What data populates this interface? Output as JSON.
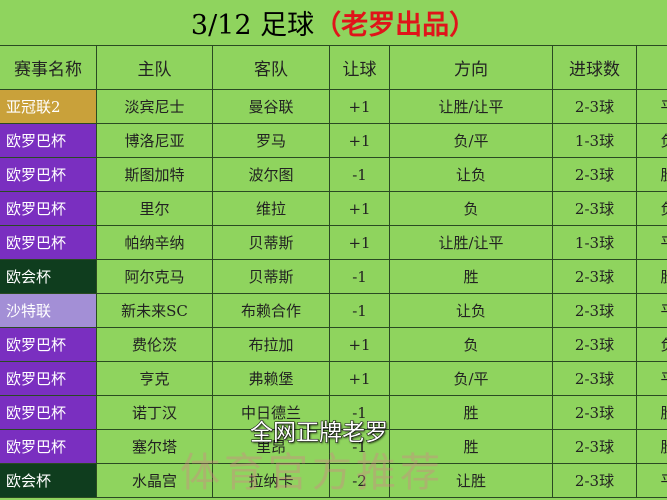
{
  "title": {
    "main": "3/12 足球",
    "author": "（老罗出品）"
  },
  "header": [
    "赛事名称",
    "主队",
    "客队",
    "让球",
    "方向",
    "进球数"
  ],
  "rows": [
    {
      "color": "#c9a13a",
      "cells": [
        "亚冠联2",
        "淡宾尼士",
        "曼谷联",
        "+1",
        "让胜/让平",
        "2-3球",
        "平"
      ]
    },
    {
      "color": "#7a2fc0",
      "cells": [
        "欧罗巴杯",
        "博洛尼亚",
        "罗马",
        "+1",
        "负/平",
        "1-3球",
        "负"
      ]
    },
    {
      "color": "#7a2fc0",
      "cells": [
        "欧罗巴杯",
        "斯图加特",
        "波尔图",
        "-1",
        "让负",
        "2-3球",
        "胜"
      ]
    },
    {
      "color": "#7a2fc0",
      "cells": [
        "欧罗巴杯",
        "里尔",
        "维拉",
        "+1",
        "负",
        "2-3球",
        "负"
      ]
    },
    {
      "color": "#7a2fc0",
      "cells": [
        "欧罗巴杯",
        "帕纳辛纳",
        "贝蒂斯",
        "+1",
        "让胜/让平",
        "1-3球",
        "平"
      ]
    },
    {
      "color": "#0f3d1e",
      "cells": [
        "欧会杯",
        "阿尔克马",
        "贝蒂斯",
        "-1",
        "胜",
        "2-3球",
        "胜"
      ]
    },
    {
      "color": "#a38fd6",
      "cells": [
        "沙特联",
        "新未来SC",
        "布赖合作",
        "-1",
        "让负",
        "2-3球",
        "平"
      ]
    },
    {
      "color": "#7a2fc0",
      "cells": [
        "欧罗巴杯",
        "费伦茨",
        "布拉加",
        "+1",
        "负",
        "2-3球",
        "负"
      ]
    },
    {
      "color": "#7a2fc0",
      "cells": [
        "欧罗巴杯",
        "亨克",
        "弗赖堡",
        "+1",
        "负/平",
        "2-3球",
        "平"
      ]
    },
    {
      "color": "#7a2fc0",
      "cells": [
        "欧罗巴杯",
        "诺丁汉",
        "中日德兰",
        "-1",
        "胜",
        "2-3球",
        "胜"
      ]
    },
    {
      "color": "#7a2fc0",
      "cells": [
        "欧罗巴杯",
        "塞尔塔",
        "里昂",
        "-1",
        "胜",
        "2-3球",
        "胜"
      ]
    },
    {
      "color": "#0f3d1e",
      "cells": [
        "欧会杯",
        "水晶宫",
        "拉纳卡",
        "-2",
        "让胜",
        "2-3球",
        "平"
      ]
    }
  ],
  "subtitle": "全网正牌老罗",
  "watermark": "体育官方推荐"
}
